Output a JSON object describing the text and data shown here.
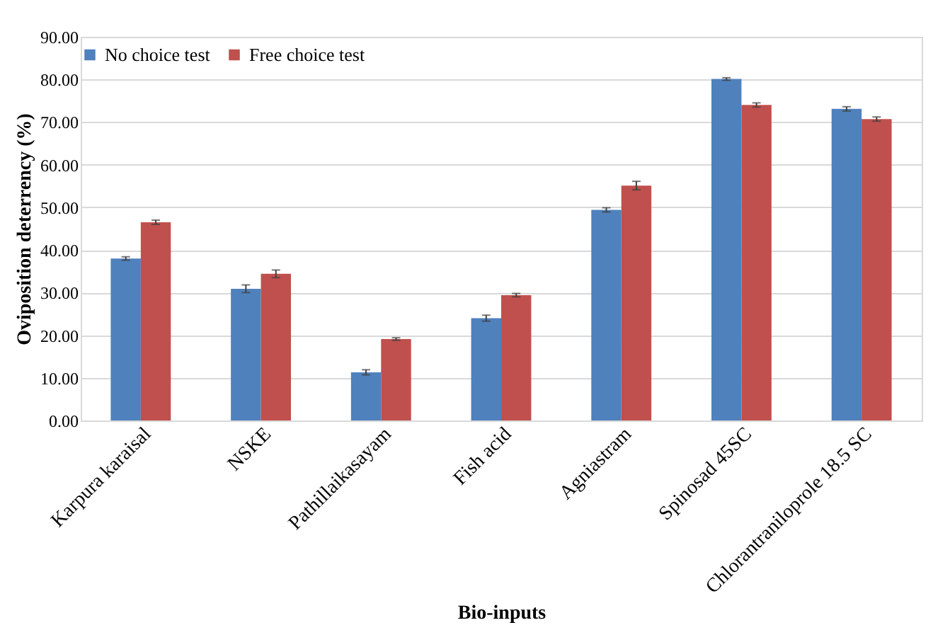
{
  "chart_data": {
    "type": "bar",
    "xlabel": "Bio-inputs",
    "ylabel": "Oviposition deterrency (%)",
    "categories": [
      "Karpura karaisal",
      "NSKE",
      "Pathillaikasayam",
      "Fish acid",
      "Agniastram",
      "Spinosad 45SC",
      "Chlorantraniloprole 18.5 SC"
    ],
    "series": [
      {
        "name": "No choice test",
        "color": "#4f81bd",
        "values": [
          38.0,
          30.9,
          11.3,
          24.0,
          49.4,
          80.1,
          73.1
        ],
        "errors": [
          0.4,
          0.9,
          0.6,
          0.7,
          0.5,
          0.3,
          0.5
        ]
      },
      {
        "name": "Free choice test",
        "color": "#c0504d",
        "values": [
          46.5,
          34.4,
          19.1,
          29.4,
          55.1,
          74.0,
          70.7
        ],
        "errors": [
          0.5,
          0.9,
          0.3,
          0.4,
          1.0,
          0.5,
          0.5
        ]
      }
    ],
    "ylim": [
      0,
      90
    ],
    "yticks": [
      {
        "value": 0,
        "label": "0.00"
      },
      {
        "value": 10,
        "label": "10.00"
      },
      {
        "value": 20,
        "label": "20.00"
      },
      {
        "value": 30,
        "label": "30.00"
      },
      {
        "value": 40,
        "label": "40.00"
      },
      {
        "value": 50,
        "label": "50.00"
      },
      {
        "value": 60,
        "label": "60.00"
      },
      {
        "value": 70,
        "label": "70.00"
      },
      {
        "value": 80,
        "label": "80.00"
      },
      {
        "value": 90,
        "label": "90.00"
      }
    ],
    "grid": "y",
    "legend": "top"
  }
}
